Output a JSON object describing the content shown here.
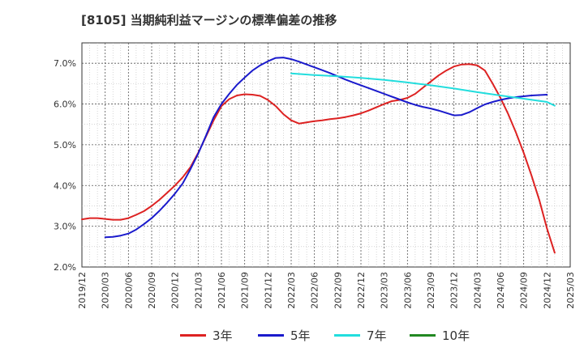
{
  "chart_data": {
    "type": "line",
    "title": "[8105]  当期純利益マージンの標準偏差の推移",
    "xlabel": "",
    "ylabel": "",
    "ylim": [
      2.0,
      7.5
    ],
    "y_ticks": [
      "2.0%",
      "3.0%",
      "4.0%",
      "5.0%",
      "6.0%",
      "7.0%"
    ],
    "y_tick_values": [
      2.0,
      3.0,
      4.0,
      5.0,
      6.0,
      7.0
    ],
    "x_ticks": [
      "2019/12",
      "2020/03",
      "2020/06",
      "2020/09",
      "2020/12",
      "2021/03",
      "2021/06",
      "2021/09",
      "2021/12",
      "2022/03",
      "2022/06",
      "2022/09",
      "2022/12",
      "2023/03",
      "2023/06",
      "2023/09",
      "2023/12",
      "2024/03",
      "2024/06",
      "2024/09",
      "2024/12",
      "2025/03"
    ],
    "grid": true,
    "legend_position": "bottom",
    "series": [
      {
        "name": "3年",
        "color": "#dd2222",
        "points": [
          [
            "2019/12",
            3.17
          ],
          [
            "2020/01",
            3.2
          ],
          [
            "2020/02",
            3.2
          ],
          [
            "2020/03",
            3.18
          ],
          [
            "2020/04",
            3.16
          ],
          [
            "2020/05",
            3.16
          ],
          [
            "2020/06",
            3.2
          ],
          [
            "2020/07",
            3.28
          ],
          [
            "2020/08",
            3.37
          ],
          [
            "2020/09",
            3.5
          ],
          [
            "2020/10",
            3.65
          ],
          [
            "2020/11",
            3.82
          ],
          [
            "2020/12",
            4.0
          ],
          [
            "2020/13",
            4.2
          ],
          [
            "2021/02",
            4.45
          ],
          [
            "2021/03",
            4.8
          ],
          [
            "2021/04",
            5.2
          ],
          [
            "2021/05",
            5.6
          ],
          [
            "2021/06",
            5.95
          ],
          [
            "2021/07",
            6.12
          ],
          [
            "2021/08",
            6.21
          ],
          [
            "2021/09",
            6.24
          ],
          [
            "2021/10",
            6.23
          ],
          [
            "2021/11",
            6.2
          ],
          [
            "2021/12",
            6.1
          ],
          [
            "2022/01",
            5.95
          ],
          [
            "2022/02",
            5.75
          ],
          [
            "2022/03",
            5.6
          ],
          [
            "2022/04",
            5.52
          ],
          [
            "2022/05",
            5.55
          ],
          [
            "2022/06",
            5.58
          ],
          [
            "2022/07",
            5.6
          ],
          [
            "2022/08",
            5.63
          ],
          [
            "2022/09",
            5.65
          ],
          [
            "2022/10",
            5.68
          ],
          [
            "2022/11",
            5.72
          ],
          [
            "2022/12",
            5.77
          ],
          [
            "2023/01",
            5.84
          ],
          [
            "2023/02",
            5.92
          ],
          [
            "2023/03",
            6.0
          ],
          [
            "2023/04",
            6.07
          ],
          [
            "2023/05",
            6.1
          ],
          [
            "2023/06",
            6.15
          ],
          [
            "2023/07",
            6.25
          ],
          [
            "2023/08",
            6.4
          ],
          [
            "2023/09",
            6.55
          ],
          [
            "2023/10",
            6.7
          ],
          [
            "2023/11",
            6.82
          ],
          [
            "2023/12",
            6.92
          ],
          [
            "2024/01",
            6.97
          ],
          [
            "2024/02",
            6.98
          ],
          [
            "2024/03",
            6.95
          ],
          [
            "2024/04",
            6.82
          ],
          [
            "2024/05",
            6.5
          ],
          [
            "2024/06",
            6.15
          ],
          [
            "2024/07",
            5.75
          ],
          [
            "2024/08",
            5.3
          ],
          [
            "2024/09",
            4.8
          ],
          [
            "2024/10",
            4.25
          ],
          [
            "2024/11",
            3.65
          ],
          [
            "2024/12",
            2.95
          ],
          [
            "2025/01",
            2.35
          ]
        ]
      },
      {
        "name": "5年",
        "color": "#1a1acc",
        "points": [
          [
            "2020/03",
            2.73
          ],
          [
            "2020/04",
            2.74
          ],
          [
            "2020/05",
            2.77
          ],
          [
            "2020/06",
            2.82
          ],
          [
            "2020/07",
            2.92
          ],
          [
            "2020/08",
            3.05
          ],
          [
            "2020/09",
            3.2
          ],
          [
            "2020/10",
            3.38
          ],
          [
            "2020/11",
            3.58
          ],
          [
            "2020/12",
            3.8
          ],
          [
            "2020/13",
            4.05
          ],
          [
            "2021/02",
            4.4
          ],
          [
            "2021/03",
            4.78
          ],
          [
            "2021/04",
            5.22
          ],
          [
            "2021/05",
            5.68
          ],
          [
            "2021/06",
            6.0
          ],
          [
            "2021/07",
            6.25
          ],
          [
            "2021/08",
            6.47
          ],
          [
            "2021/09",
            6.65
          ],
          [
            "2021/10",
            6.82
          ],
          [
            "2021/11",
            6.95
          ],
          [
            "2021/12",
            7.05
          ],
          [
            "2022/01",
            7.13
          ],
          [
            "2022/02",
            7.14
          ],
          [
            "2022/03",
            7.1
          ],
          [
            "2022/04",
            7.04
          ],
          [
            "2022/05",
            6.97
          ],
          [
            "2022/06",
            6.9
          ],
          [
            "2022/07",
            6.83
          ],
          [
            "2022/08",
            6.76
          ],
          [
            "2022/09",
            6.68
          ],
          [
            "2022/10",
            6.6
          ],
          [
            "2022/11",
            6.53
          ],
          [
            "2022/12",
            6.46
          ],
          [
            "2023/01",
            6.39
          ],
          [
            "2023/02",
            6.32
          ],
          [
            "2023/03",
            6.25
          ],
          [
            "2023/04",
            6.18
          ],
          [
            "2023/05",
            6.11
          ],
          [
            "2023/06",
            6.04
          ],
          [
            "2023/07",
            5.98
          ],
          [
            "2023/08",
            5.93
          ],
          [
            "2023/09",
            5.89
          ],
          [
            "2023/10",
            5.84
          ],
          [
            "2023/11",
            5.78
          ],
          [
            "2023/12",
            5.72
          ],
          [
            "2024/01",
            5.73
          ],
          [
            "2024/02",
            5.8
          ],
          [
            "2024/03",
            5.9
          ],
          [
            "2024/04",
            5.99
          ],
          [
            "2024/05",
            6.05
          ],
          [
            "2024/06",
            6.1
          ],
          [
            "2024/07",
            6.14
          ],
          [
            "2024/08",
            6.17
          ],
          [
            "2024/09",
            6.19
          ],
          [
            "2024/10",
            6.21
          ],
          [
            "2024/11",
            6.22
          ],
          [
            "2024/12",
            6.23
          ]
        ]
      },
      {
        "name": "7年",
        "color": "#22dddd",
        "points": [
          [
            "2022/03",
            6.75
          ],
          [
            "2022/06",
            6.71
          ],
          [
            "2022/09",
            6.68
          ],
          [
            "2022/12",
            6.64
          ],
          [
            "2023/03",
            6.59
          ],
          [
            "2023/06",
            6.53
          ],
          [
            "2023/09",
            6.46
          ],
          [
            "2023/12",
            6.38
          ],
          [
            "2024/03",
            6.29
          ],
          [
            "2024/06",
            6.21
          ],
          [
            "2024/09",
            6.13
          ],
          [
            "2024/12",
            6.05
          ],
          [
            "2025/01",
            5.96
          ]
        ]
      },
      {
        "name": "10年",
        "color": "#228822",
        "points": []
      }
    ]
  }
}
